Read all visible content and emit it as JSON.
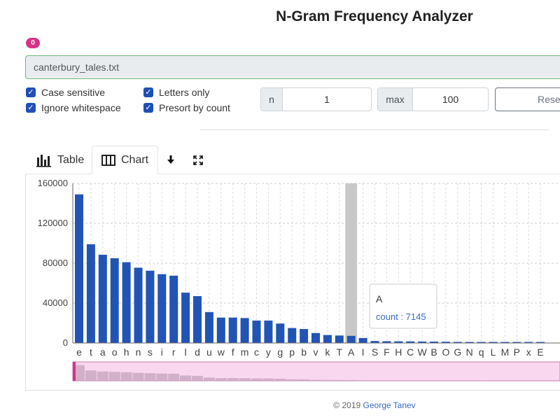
{
  "title": "N-Gram Frequency Analyzer",
  "badge": "0",
  "file_name": "canterbury_tales.txt",
  "options": {
    "case_sensitive": "Case sensitive",
    "ignore_whitespace": "Ignore whitespace",
    "letters_only": "Letters only",
    "presort": "Presort by count"
  },
  "n_label": "n",
  "n_value": "1",
  "max_label": "max",
  "max_value": "100",
  "reset_label": "Reset",
  "tabs": {
    "table": "Table",
    "chart": "Chart"
  },
  "footer": {
    "prefix": "© 2019 ",
    "author": "George Tanev"
  },
  "colors": {
    "bar": "#2254b5",
    "highlight": "#c8c8c8",
    "slider": "#f9d7ee",
    "accent": "#d63384"
  },
  "chart_data": {
    "type": "bar",
    "categories": [
      "e",
      "t",
      "a",
      "o",
      "h",
      "n",
      "s",
      "i",
      "r",
      "l",
      "d",
      "u",
      "w",
      "f",
      "m",
      "c",
      "y",
      "g",
      "p",
      "b",
      "v",
      "k",
      "T",
      "A",
      "I",
      "S",
      "F",
      "H",
      "C",
      "W",
      "B",
      "O",
      "G",
      "N",
      "q",
      "L",
      "M",
      "P",
      "x",
      "E"
    ],
    "values": [
      149000,
      99000,
      88500,
      85000,
      81000,
      75500,
      72500,
      69000,
      67500,
      50500,
      47000,
      31000,
      25500,
      25500,
      25000,
      22500,
      22500,
      19500,
      15000,
      14000,
      10000,
      8000,
      7500,
      7145,
      5000,
      2000,
      1800,
      1700,
      1600,
      1500,
      1400,
      1300,
      1100,
      1000,
      900,
      800,
      700,
      600,
      500,
      400
    ],
    "ylim": [
      0,
      160000
    ],
    "yticks": [
      0,
      40000,
      80000,
      120000,
      160000
    ],
    "grid": true,
    "highlighted_category": "A",
    "tooltip": {
      "category": "A",
      "label": "count",
      "value": 7145
    }
  }
}
